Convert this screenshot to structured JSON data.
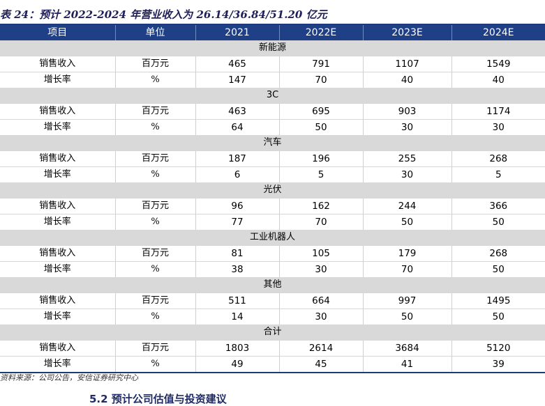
{
  "caption": "表 24：预计 2022-2024 年营业收入为 26.14/36.84/51.20 亿元",
  "headers": [
    "项目",
    "单位",
    "2021",
    "2022E",
    "2023E",
    "2024E"
  ],
  "groups": [
    {
      "name": "新能源",
      "rows": [
        {
          "item": "销售收入",
          "unit": "百万元",
          "values": [
            "465",
            "791",
            "1107",
            "1549"
          ]
        },
        {
          "item": "增长率",
          "unit": "%",
          "values": [
            "147",
            "70",
            "40",
            "40"
          ]
        }
      ]
    },
    {
      "name": "3C",
      "rows": [
        {
          "item": "销售收入",
          "unit": "百万元",
          "values": [
            "463",
            "695",
            "903",
            "1174"
          ]
        },
        {
          "item": "增长率",
          "unit": "%",
          "values": [
            "64",
            "50",
            "30",
            "30"
          ]
        }
      ]
    },
    {
      "name": "汽车",
      "rows": [
        {
          "item": "销售收入",
          "unit": "百万元",
          "values": [
            "187",
            "196",
            "255",
            "268"
          ]
        },
        {
          "item": "增长率",
          "unit": "%",
          "values": [
            "6",
            "5",
            "30",
            "5"
          ]
        }
      ]
    },
    {
      "name": "光伏",
      "rows": [
        {
          "item": "销售收入",
          "unit": "百万元",
          "values": [
            "96",
            "162",
            "244",
            "366"
          ]
        },
        {
          "item": "增长率",
          "unit": "%",
          "values": [
            "77",
            "70",
            "50",
            "50"
          ]
        }
      ]
    },
    {
      "name": "工业机器人",
      "rows": [
        {
          "item": "销售收入",
          "unit": "百万元",
          "values": [
            "81",
            "105",
            "179",
            "268"
          ]
        },
        {
          "item": "增长率",
          "unit": "%",
          "values": [
            "38",
            "30",
            "70",
            "50"
          ]
        }
      ]
    },
    {
      "name": "其他",
      "rows": [
        {
          "item": "销售收入",
          "unit": "百万元",
          "values": [
            "511",
            "664",
            "997",
            "1495"
          ]
        },
        {
          "item": "增长率",
          "unit": "%",
          "values": [
            "14",
            "30",
            "50",
            "50"
          ]
        }
      ]
    },
    {
      "name": "合计",
      "rows": [
        {
          "item": "销售收入",
          "unit": "百万元",
          "values": [
            "1803",
            "2614",
            "3684",
            "5120"
          ]
        },
        {
          "item": "增长率",
          "unit": "%",
          "values": [
            "49",
            "45",
            "41",
            "39"
          ]
        }
      ]
    }
  ],
  "source": "资料来源：公司公告，安信证券研究中心",
  "next_section": "5.2 预计公司估值与投资建议"
}
